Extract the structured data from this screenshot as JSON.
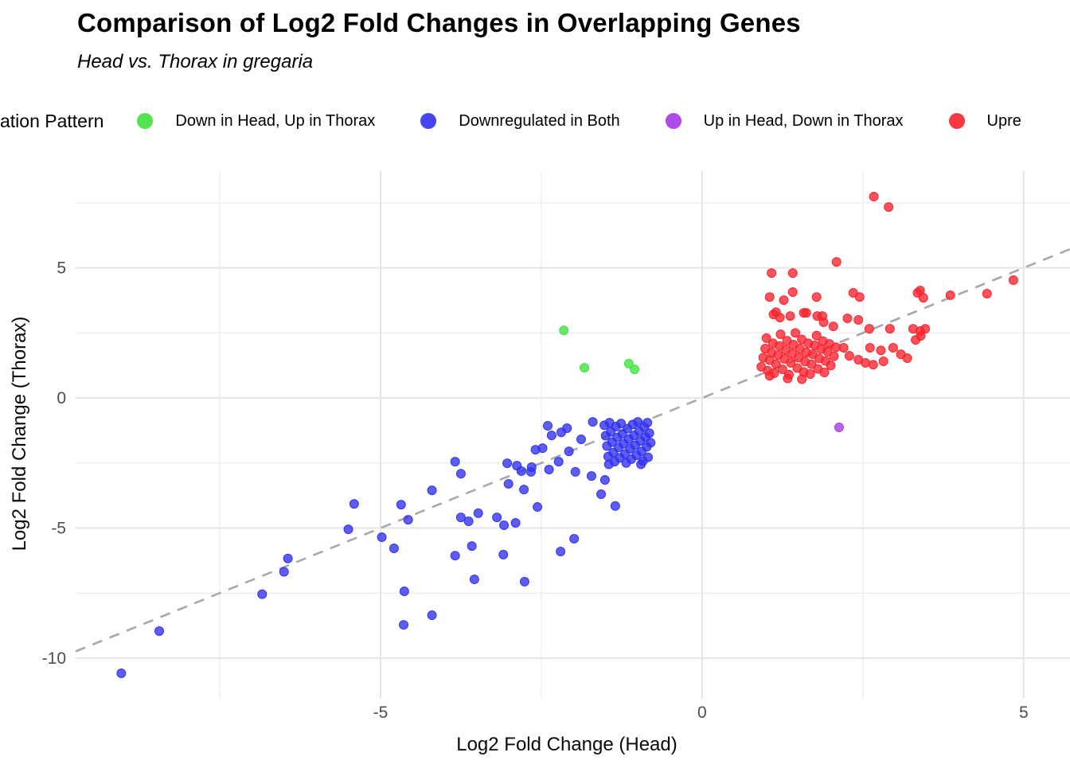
{
  "header": {
    "title": "Comparison of Log2 Fold Changes in Overlapping Genes",
    "subtitle": "Head vs. Thorax in gregaria"
  },
  "legend": {
    "title": "ation Pattern",
    "items": [
      {
        "label": "Down in Head, Up in Thorax",
        "color": "#3fe13c"
      },
      {
        "label": "Downregulated in Both",
        "color": "#3030ee"
      },
      {
        "label": "Up in Head, Down in Thorax",
        "color": "#a438e6"
      },
      {
        "label": "Upre",
        "color": "#f8232d"
      }
    ]
  },
  "chart_data": {
    "type": "scatter",
    "title": "Comparison of Log2 Fold Changes in Overlapping Genes",
    "subtitle": "Head vs. Thorax in gregaria",
    "xlabel": "Log2 Fold Change (Head)",
    "ylabel": "Log2 Fold Change (Thorax)",
    "xlim": [
      -9.74,
      5.72
    ],
    "ylim": [
      -11.56,
      8.72
    ],
    "x_ticks": [
      -5,
      0,
      5
    ],
    "y_ticks": [
      -10,
      -5,
      0,
      5
    ],
    "x_minor": [
      -7.5,
      -2.5,
      2.5
    ],
    "y_minor": [
      -7.5,
      -2.5,
      2.5,
      7.5
    ],
    "grid": "on",
    "legend_position": "top",
    "reference_line": {
      "type": "identity y=x",
      "style": "dashed",
      "color": "#a8a8a8"
    },
    "series": [
      {
        "name": "Down in Head, Up in Thorax",
        "color": "#3fe13c",
        "points": [
          [
            -2.15,
            2.6
          ],
          [
            -1.83,
            1.16
          ],
          [
            -1.14,
            1.32
          ],
          [
            -1.05,
            1.1
          ]
        ]
      },
      {
        "name": "Downregulated in Both",
        "color": "#3030ee",
        "points": [
          [
            -9.03,
            -10.58
          ],
          [
            -8.44,
            -8.96
          ],
          [
            -6.84,
            -7.54
          ],
          [
            -6.5,
            -6.68
          ],
          [
            -6.44,
            -6.17
          ],
          [
            -5.5,
            -5.05
          ],
          [
            -5.41,
            -4.07
          ],
          [
            -4.98,
            -5.35
          ],
          [
            -4.79,
            -5.78
          ],
          [
            -4.68,
            -4.1
          ],
          [
            -4.64,
            -8.72
          ],
          [
            -4.63,
            -7.43
          ],
          [
            -4.57,
            -4.68
          ],
          [
            -4.2,
            -8.35
          ],
          [
            -4.2,
            -3.55
          ],
          [
            -3.84,
            -6.06
          ],
          [
            -3.84,
            -2.45
          ],
          [
            -3.75,
            -2.91
          ],
          [
            -3.75,
            -4.59
          ],
          [
            -3.63,
            -4.74
          ],
          [
            -3.58,
            -5.69
          ],
          [
            -3.54,
            -6.97
          ],
          [
            -3.48,
            -4.43
          ],
          [
            -3.19,
            -4.59
          ],
          [
            -3.09,
            -6.02
          ],
          [
            -3.08,
            -4.89
          ],
          [
            -3.03,
            -2.51
          ],
          [
            -3.01,
            -3.3
          ],
          [
            -2.9,
            -4.8
          ],
          [
            -2.88,
            -2.6
          ],
          [
            -2.77,
            -3.52
          ],
          [
            -2.76,
            -7.06
          ],
          [
            -2.66,
            -2.84
          ],
          [
            -2.59,
            -1.99
          ],
          [
            -2.56,
            -4.19
          ],
          [
            -2.2,
            -5.9
          ],
          [
            -1.99,
            -5.41
          ],
          [
            -2.81,
            -2.81
          ],
          [
            -2.65,
            -2.66
          ],
          [
            -2.48,
            -1.93
          ],
          [
            -2.4,
            -1.07
          ],
          [
            -2.38,
            -2.75
          ],
          [
            -2.34,
            -1.44
          ],
          [
            -2.23,
            -2.45
          ],
          [
            -2.19,
            -1.32
          ],
          [
            -2.1,
            -1.16
          ],
          [
            -2.07,
            -2.05
          ],
          [
            -1.97,
            -2.84
          ],
          [
            -1.88,
            -1.59
          ],
          [
            -1.72,
            -3.0
          ],
          [
            -1.7,
            -0.92
          ],
          [
            -1.57,
            -3.7
          ],
          [
            -1.51,
            -3.15
          ],
          [
            -1.35,
            -4.15
          ],
          [
            -1.52,
            -1.05
          ],
          [
            -1.5,
            -1.45
          ],
          [
            -1.48,
            -1.85
          ],
          [
            -1.46,
            -2.25
          ],
          [
            -1.44,
            -0.95
          ],
          [
            -1.42,
            -1.3
          ],
          [
            -1.4,
            -1.7
          ],
          [
            -1.38,
            -2.1
          ],
          [
            -1.36,
            -2.45
          ],
          [
            -1.34,
            -1.1
          ],
          [
            -1.32,
            -1.52
          ],
          [
            -1.3,
            -1.9
          ],
          [
            -1.28,
            -2.3
          ],
          [
            -1.26,
            -0.98
          ],
          [
            -1.24,
            -1.38
          ],
          [
            -1.22,
            -1.76
          ],
          [
            -1.2,
            -2.15
          ],
          [
            -1.18,
            -2.5
          ],
          [
            -1.16,
            -1.18
          ],
          [
            -1.14,
            -1.58
          ],
          [
            -1.12,
            -1.95
          ],
          [
            -1.1,
            -2.35
          ],
          [
            -1.08,
            -1.02
          ],
          [
            -1.06,
            -1.44
          ],
          [
            -1.04,
            -1.82
          ],
          [
            -1.02,
            -2.2
          ],
          [
            -1.0,
            -0.92
          ],
          [
            -0.98,
            -1.28
          ],
          [
            -0.96,
            -1.65
          ],
          [
            -0.94,
            -2.05
          ],
          [
            -0.92,
            -2.42
          ],
          [
            -0.9,
            -1.12
          ],
          [
            -0.88,
            -1.5
          ],
          [
            -0.86,
            -1.88
          ],
          [
            -0.84,
            -2.28
          ],
          [
            -0.82,
            -1.35
          ],
          [
            -0.8,
            -1.72
          ],
          [
            -0.85,
            -0.95
          ],
          [
            -0.95,
            -2.55
          ],
          [
            -1.45,
            -2.55
          ]
        ]
      },
      {
        "name": "Up in Head, Down in Thorax",
        "color": "#a438e6",
        "points": [
          [
            2.13,
            -1.13
          ]
        ]
      },
      {
        "name": "Upregulated in Both",
        "color": "#f8232d",
        "points": [
          [
            2.67,
            7.74
          ],
          [
            2.9,
            7.34
          ],
          [
            2.09,
            5.23
          ],
          [
            1.08,
            4.8
          ],
          [
            1.41,
            4.8
          ],
          [
            4.84,
            4.53
          ],
          [
            3.39,
            4.13
          ],
          [
            1.41,
            4.07
          ],
          [
            2.35,
            4.04
          ],
          [
            3.35,
            4.04
          ],
          [
            4.43,
            4.01
          ],
          [
            3.86,
            3.95
          ],
          [
            1.05,
            3.88
          ],
          [
            1.78,
            3.88
          ],
          [
            2.45,
            3.88
          ],
          [
            3.44,
            3.85
          ],
          [
            1.27,
            3.76
          ],
          [
            1.15,
            3.3
          ],
          [
            1.58,
            3.27
          ],
          [
            1.62,
            3.27
          ],
          [
            1.11,
            3.21
          ],
          [
            1.37,
            3.15
          ],
          [
            1.79,
            3.15
          ],
          [
            1.87,
            3.15
          ],
          [
            1.21,
            3.09
          ],
          [
            2.26,
            3.06
          ],
          [
            2.43,
            3.0
          ],
          [
            1.89,
            2.91
          ],
          [
            2.04,
            2.75
          ],
          [
            2.6,
            2.66
          ],
          [
            2.92,
            2.66
          ],
          [
            3.28,
            2.66
          ],
          [
            3.47,
            2.66
          ],
          [
            3.39,
            2.57
          ],
          [
            3.4,
            2.39
          ],
          [
            3.32,
            2.23
          ],
          [
            2.2,
            1.93
          ],
          [
            2.61,
            1.93
          ],
          [
            2.97,
            1.93
          ],
          [
            2.78,
            1.83
          ],
          [
            3.09,
            1.68
          ],
          [
            2.29,
            1.62
          ],
          [
            3.19,
            1.53
          ],
          [
            2.43,
            1.47
          ],
          [
            2.82,
            1.41
          ],
          [
            2.54,
            1.35
          ],
          [
            2.66,
            1.28
          ],
          [
            0.92,
            1.2
          ],
          [
            0.95,
            1.55
          ],
          [
            0.98,
            1.9
          ],
          [
            1.0,
            2.3
          ],
          [
            1.02,
            1.05
          ],
          [
            1.05,
            1.45
          ],
          [
            1.08,
            1.75
          ],
          [
            1.1,
            2.1
          ],
          [
            1.12,
            0.95
          ],
          [
            1.15,
            1.3
          ],
          [
            1.18,
            1.65
          ],
          [
            1.2,
            2.0
          ],
          [
            1.22,
            2.45
          ],
          [
            1.25,
            1.1
          ],
          [
            1.28,
            1.5
          ],
          [
            1.3,
            1.85
          ],
          [
            1.32,
            2.2
          ],
          [
            1.35,
            0.9
          ],
          [
            1.38,
            1.35
          ],
          [
            1.4,
            1.7
          ],
          [
            1.42,
            2.05
          ],
          [
            1.45,
            2.5
          ],
          [
            1.48,
            1.15
          ],
          [
            1.5,
            1.55
          ],
          [
            1.52,
            1.9
          ],
          [
            1.55,
            2.25
          ],
          [
            1.58,
            1.0
          ],
          [
            1.6,
            1.4
          ],
          [
            1.62,
            1.75
          ],
          [
            1.65,
            2.1
          ],
          [
            1.68,
            0.92
          ],
          [
            1.7,
            1.3
          ],
          [
            1.72,
            1.68
          ],
          [
            1.75,
            2.02
          ],
          [
            1.78,
            2.4
          ],
          [
            1.8,
            1.12
          ],
          [
            1.82,
            1.52
          ],
          [
            1.85,
            1.88
          ],
          [
            1.88,
            2.18
          ],
          [
            1.9,
            0.98
          ],
          [
            1.92,
            1.42
          ],
          [
            1.95,
            1.78
          ],
          [
            1.98,
            2.08
          ],
          [
            2.0,
            1.25
          ],
          [
            2.05,
            1.6
          ],
          [
            2.08,
            1.95
          ],
          [
            1.33,
            0.75
          ],
          [
            1.55,
            0.72
          ],
          [
            1.05,
            0.85
          ]
        ]
      }
    ]
  },
  "style_colors": {
    "major_grid": "#e5e5e5",
    "minor_grid": "#efefef",
    "tick_text": "#4d4d4d",
    "reference_line": "#a8a8a8"
  }
}
